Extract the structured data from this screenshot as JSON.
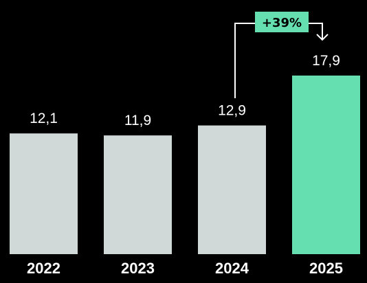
{
  "chart_data": {
    "type": "bar",
    "categories": [
      "2022",
      "2023",
      "2024",
      "2025"
    ],
    "values": [
      12.1,
      11.9,
      12.9,
      17.9
    ],
    "value_labels": [
      "12,1",
      "11,9",
      "12,9",
      "17,9"
    ],
    "title": "",
    "xlabel": "",
    "ylabel": "",
    "ylim": [
      0,
      17.9
    ],
    "grid": false,
    "legend": "none",
    "colors": {
      "background": "#000000",
      "bar_default": "#D1D9D8",
      "bar_highlight": "#66DFB0",
      "text": "#FFFFFF",
      "callout_fill": "#66DFB0",
      "callout_text": "#000000",
      "connector": "#FFFFFF"
    },
    "highlight_index": 3,
    "annotation": {
      "text": "+39%",
      "from_index": 2,
      "to_index": 3
    }
  }
}
